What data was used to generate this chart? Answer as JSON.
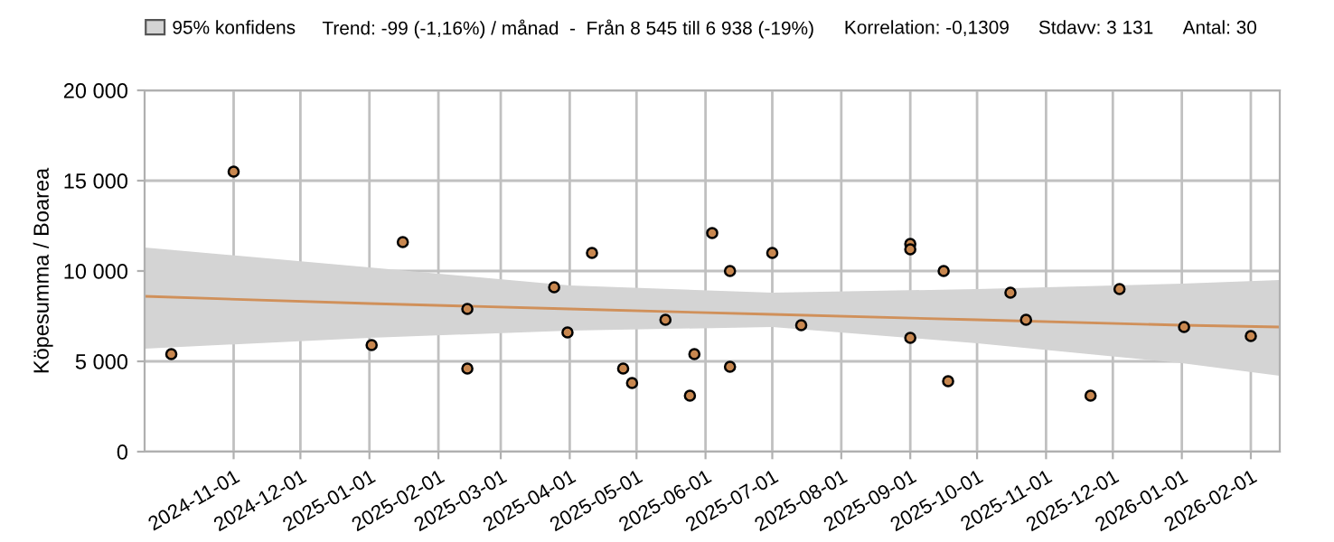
{
  "chart_data": {
    "type": "scatter",
    "ylabel": "Köpesumma / Boarea",
    "annotations": [
      "Trend: -99 (-1,16%) / månad  -  Från 8 545 till 6 938 (-19%)",
      "Korrelation: -0,1309",
      "Stdavv: 3 131",
      "Antal: 30"
    ],
    "xlim": [
      "2024-09-22",
      "2026-02-14"
    ],
    "xticks": [
      "2024-11-01",
      "2024-12-01",
      "2025-01-01",
      "2025-02-01",
      "2025-03-01",
      "2025-04-01",
      "2025-05-01",
      "2025-06-01",
      "2025-07-01",
      "2025-08-01",
      "2025-09-01",
      "2025-10-01",
      "2025-11-01",
      "2025-12-01",
      "2026-01-01",
      "2026-02-01"
    ],
    "ylim": [
      0,
      20000
    ],
    "yticks": [
      0,
      {
        "value": 5000,
        "label": "5 000"
      },
      {
        "value": 10000,
        "label": "10 000"
      },
      {
        "value": 15000,
        "label": "15 000"
      },
      {
        "value": 20000,
        "label": "20 000"
      }
    ],
    "grid": true,
    "legend": "top left",
    "series": [
      {
        "type": "line",
        "name": "95% konfidens",
        "color": "#d0905a",
        "x": [
          "2024-09-22",
          "2025-01-01",
          "2025-04-01",
          "2025-07-01",
          "2025-10-01",
          "2026-01-01",
          "2026-02-14"
        ],
        "values": [
          8600,
          8200,
          7900,
          7600,
          7300,
          7000,
          6900
        ],
        "lower": [
          5700,
          6300,
          6700,
          6900,
          6000,
          4900,
          4200
        ],
        "upper": [
          11300,
          10200,
          9200,
          8800,
          9000,
          9300,
          9500
        ]
      },
      {
        "color": "#c8874f",
        "marker": "circle",
        "x": [
          "2024-10-04",
          "2024-11-01",
          "2025-01-02",
          "2025-01-16",
          "2025-02-14",
          "2025-02-14",
          "2025-03-25",
          "2025-03-31",
          "2025-04-11",
          "2025-04-25",
          "2025-04-29",
          "2025-05-14",
          "2025-05-27",
          "2025-05-25",
          "2025-06-04",
          "2025-06-12",
          "2025-06-12",
          "2025-07-01",
          "2025-07-14",
          "2025-09-01",
          "2025-09-01",
          "2025-09-01",
          "2025-09-16",
          "2025-09-18",
          "2025-10-16",
          "2025-10-23",
          "2025-11-21",
          "2025-12-04",
          "2026-01-02",
          "2026-02-01"
        ],
        "values": [
          5400,
          15500,
          5900,
          11600,
          7900,
          4600,
          9100,
          6600,
          11000,
          4600,
          3800,
          7300,
          5400,
          3100,
          12100,
          10000,
          4700,
          11000,
          7000,
          11500,
          11200,
          6300,
          10000,
          3900,
          8800,
          7300,
          3100,
          9000,
          6900,
          6400
        ]
      }
    ]
  }
}
